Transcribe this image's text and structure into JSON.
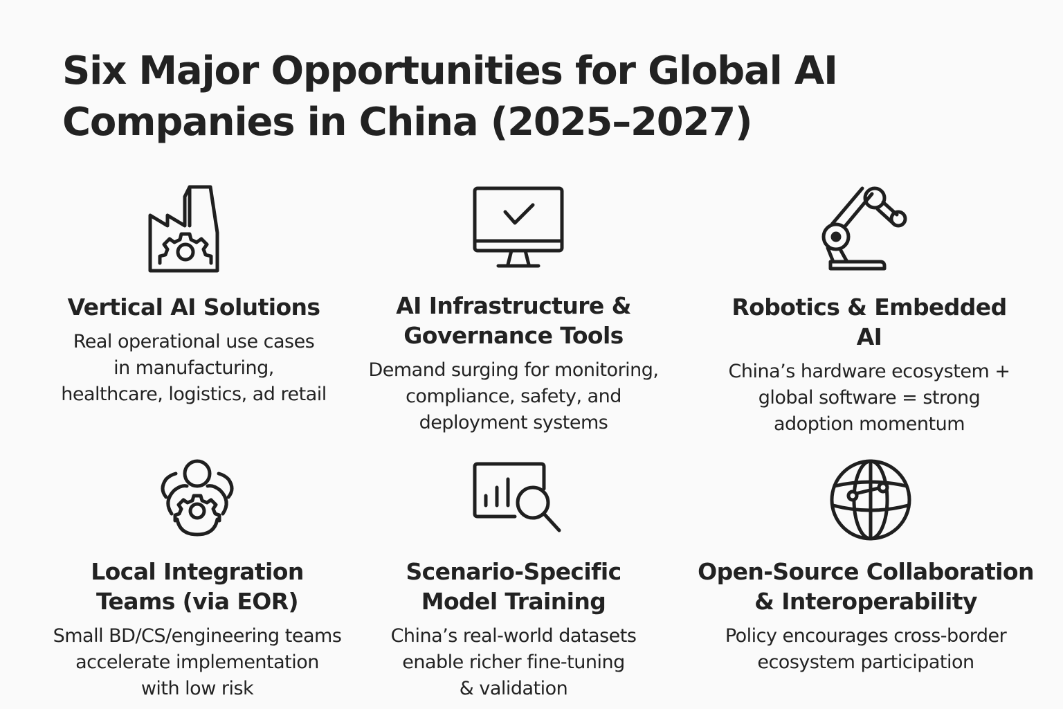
{
  "title": {
    "line1": "Six Major Opportunities for Global AI",
    "line2": "Companies in China (2025–2027)"
  },
  "cards": [
    {
      "icon": "factory-gear-icon",
      "title": [
        "Vertical AI Solutions"
      ],
      "desc": [
        "Real operational use cases",
        "in manufacturing,",
        "healthcare, logistics, ad retail"
      ]
    },
    {
      "icon": "monitor-check-icon",
      "title": [
        "AI Infrastructure &",
        "Governance Tools"
      ],
      "desc": [
        "Demand surging for monitoring,",
        "compliance, safety, and",
        "deployment systems"
      ]
    },
    {
      "icon": "robot-arm-icon",
      "title": [
        "Robotics & Embedded",
        "AI"
      ],
      "desc": [
        "China’s hardware ecosystem +",
        "global software = strong",
        "adoption momentum"
      ]
    },
    {
      "icon": "team-gear-icon",
      "title": [
        "Local Integration",
        "Teams (via EOR)"
      ],
      "desc": [
        "Small BD/CS/engineering teams",
        "accelerate implementation",
        "with low risk"
      ]
    },
    {
      "icon": "chart-magnifier-icon",
      "title": [
        "Scenario-Specific",
        "Model Training"
      ],
      "desc": [
        "China’s real-world datasets",
        "enable richer fine-tuning",
        "& validation"
      ]
    },
    {
      "icon": "globe-network-icon",
      "title": [
        "Open-Source Collaboration",
        "& Interoperability"
      ],
      "desc": [
        "Policy encourages cross-border",
        "ecosystem participation"
      ]
    }
  ]
}
